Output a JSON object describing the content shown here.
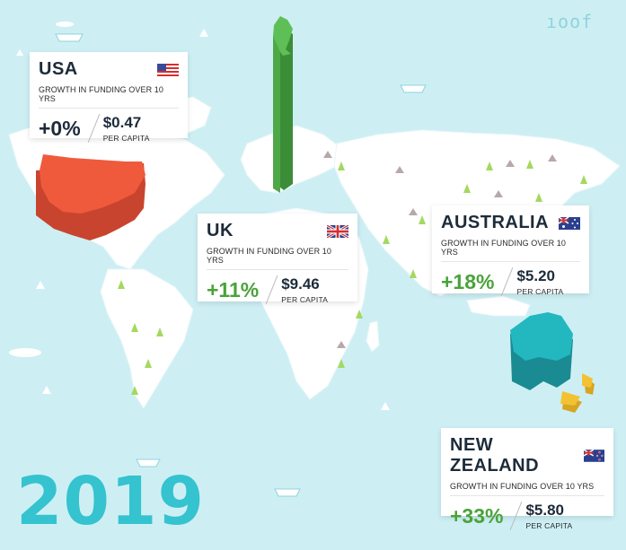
{
  "logo_text": "ıoof",
  "year": "2019",
  "cards": {
    "usa": {
      "country": "USA",
      "subtitle": "GROWTH IN FUNDING OVER 10 YRS",
      "growth": "+0%",
      "value": "$0.47",
      "per": "PER CAPITA",
      "flag_icon": "usa-flag-icon"
    },
    "uk": {
      "country": "UK",
      "subtitle": "GROWTH IN FUNDING OVER 10 YRS",
      "growth": "+11%",
      "value": "$9.46",
      "per": "PER CAPITA",
      "flag_icon": "uk-flag-icon"
    },
    "australia": {
      "country": "AUSTRALIA",
      "subtitle": "GROWTH IN FUNDING OVER 10 YRS",
      "growth": "+18%",
      "value": "$5.20",
      "per": "PER CAPITA",
      "flag_icon": "australia-flag-icon"
    },
    "new_zealand": {
      "country": "NEW ZEALAND",
      "subtitle": "GROWTH IN FUNDING OVER 10 YRS",
      "growth": "+33%",
      "value": "$5.80",
      "per": "PER CAPITA",
      "flag_icon": "new-zealand-flag-icon"
    }
  },
  "colors": {
    "ocean": "#cdeff4",
    "land": "#ffffff",
    "usa": "#f05a3c",
    "uk": "#4fa848",
    "australia": "#23b8c0",
    "new_zealand": "#f2c233",
    "positive": "#4aa33a",
    "year": "#34c3cf"
  }
}
